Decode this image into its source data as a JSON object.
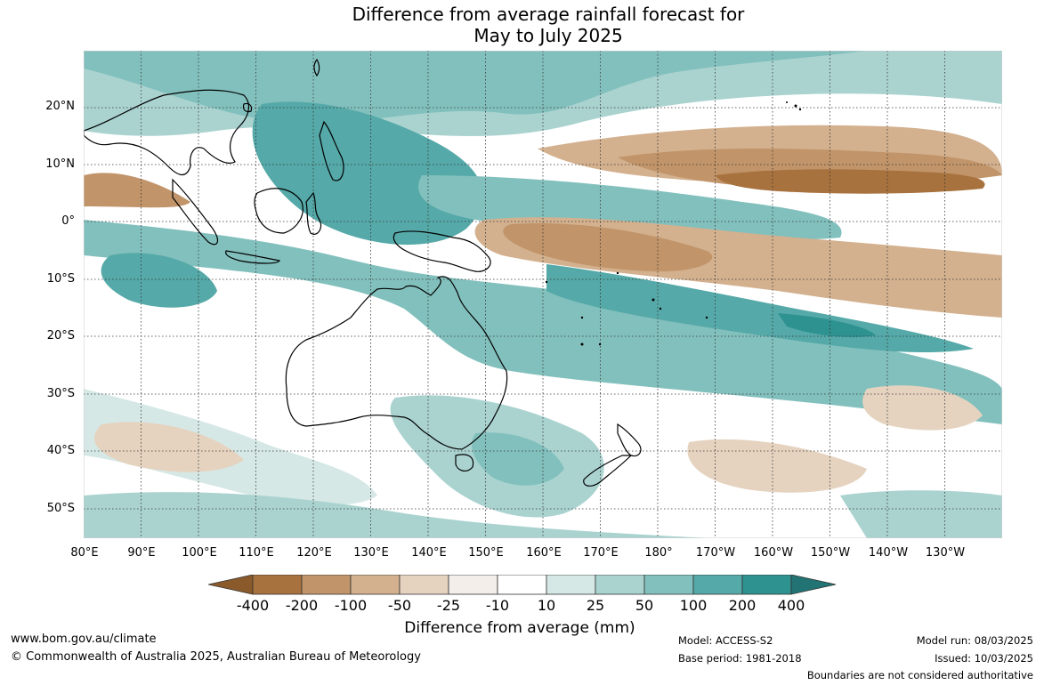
{
  "title_line1": "Difference from average rainfall forecast for",
  "title_line2": "May to July 2025",
  "lat_labels": [
    "20°N",
    "10°N",
    "0°",
    "10°S",
    "20°S",
    "30°S",
    "40°S",
    "50°S"
  ],
  "lon_labels": [
    "80°E",
    "90°E",
    "100°E",
    "110°E",
    "120°E",
    "130°E",
    "140°E",
    "150°E",
    "160°E",
    "170°E",
    "180°",
    "170°W",
    "160°W",
    "150°W",
    "140°W",
    "130°W"
  ],
  "legend": {
    "title": "Difference from average (mm)",
    "tick_labels": [
      "-400",
      "-200",
      "-100",
      "-50",
      "-25",
      "-10",
      "10",
      "25",
      "50",
      "100",
      "200",
      "400"
    ],
    "colors": [
      "#8a5a2b",
      "#a8723e",
      "#c19469",
      "#d3b08e",
      "#e5d3c0",
      "#f3eeea",
      "#ffffff",
      "#d6e8e6",
      "#aad3d0",
      "#82c0bd",
      "#55a9a8",
      "#2d9290",
      "#217473"
    ]
  },
  "footer": {
    "website": "www.bom.gov.au/climate",
    "copyright": "© Commonwealth of Australia 2025, Australian Bureau of Meteorology",
    "model": "Model: ACCESS-S2",
    "base_period": "Base period: 1981-2018",
    "model_run": "Model run: 08/03/2025",
    "issued": "Issued: 10/03/2025",
    "disclaimer": "Boundaries are not considered authoritative"
  }
}
